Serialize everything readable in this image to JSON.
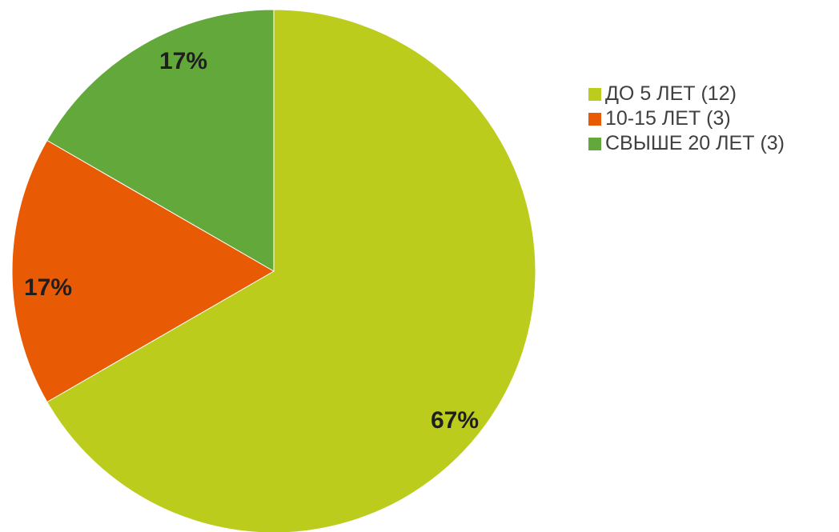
{
  "chart_data": {
    "type": "pie",
    "title": "",
    "slices": [
      {
        "label": "ДО 5 ЛЕТ (12)",
        "value": 12,
        "percent_label": "67%",
        "color": "#bccc1c"
      },
      {
        "label": "10-15 ЛЕТ (3)",
        "value": 3,
        "percent_label": "17%",
        "color": "#e85a04"
      },
      {
        "label": "СВЫШЕ 20 ЛЕТ (3)",
        "value": 3,
        "percent_label": "17%",
        "color": "#62a83a"
      }
    ],
    "start_angle_deg": 0,
    "direction": "clockwise",
    "legend_position": "right"
  }
}
